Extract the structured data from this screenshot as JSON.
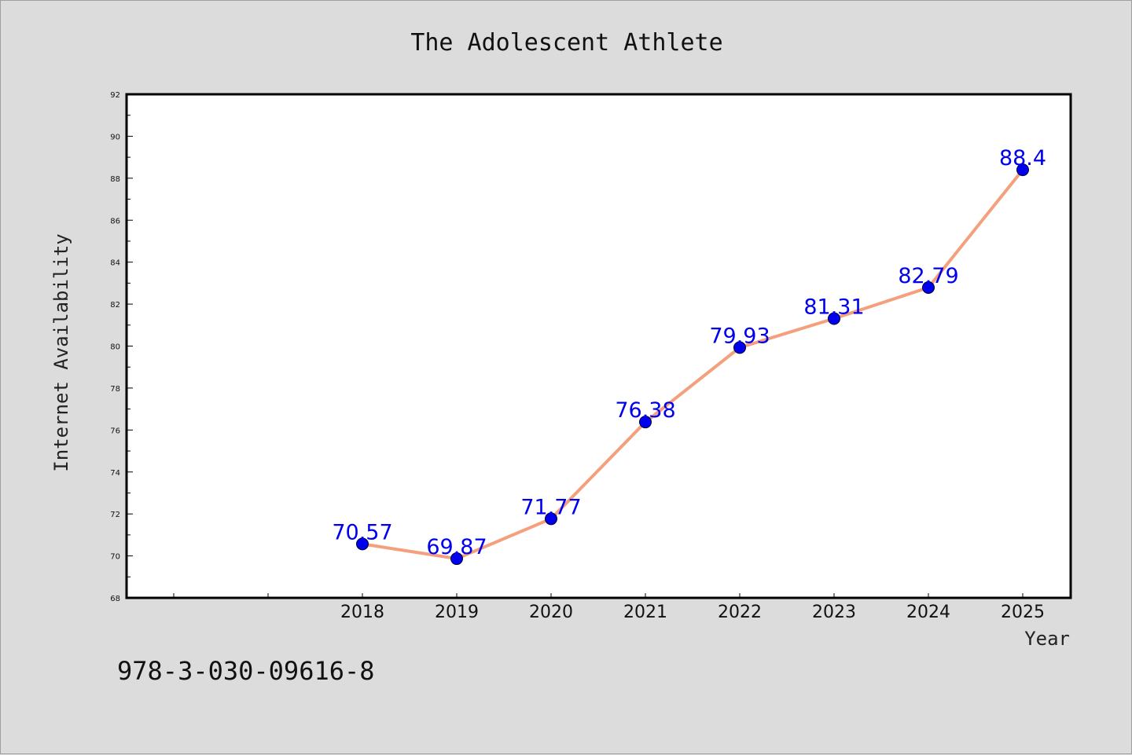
{
  "chart_data": {
    "type": "line",
    "title": "The Adolescent Athlete",
    "xlabel": "Year",
    "ylabel": "Internet Availability",
    "categories": [
      "2018",
      "2019",
      "2020",
      "2021",
      "2022",
      "2023",
      "2024",
      "2025"
    ],
    "series": [
      {
        "values": [
          70.57,
          69.87,
          71.77,
          76.38,
          79.93,
          81.31,
          82.79,
          88.4
        ],
        "data_labels": [
          "70.57",
          "69.87",
          "71.77",
          "76.38",
          "79.93",
          "81.31",
          "82.79",
          "88.4"
        ],
        "line_color": "#f4a07c",
        "marker_color": "#0000ee"
      }
    ],
    "ylim": [
      68,
      92
    ],
    "yticks": [
      "68",
      "70",
      "72",
      "74",
      "76",
      "78",
      "80",
      "82",
      "84",
      "86",
      "88",
      "90",
      "92"
    ],
    "grid": false,
    "legend": "none"
  },
  "footer": {
    "isbn": "978-3-030-09616-8"
  }
}
